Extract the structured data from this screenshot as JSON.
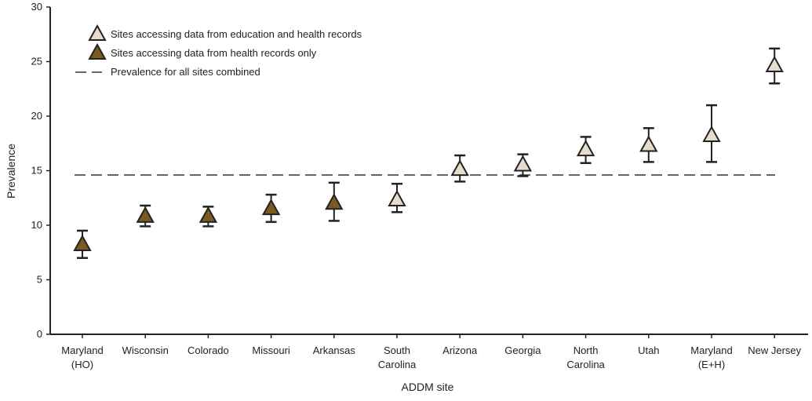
{
  "chart_data": {
    "type": "scatter",
    "title": "",
    "xlabel": "ADDM site",
    "ylabel": "Prevalence",
    "ylim": [
      0,
      30
    ],
    "yticks": [
      0,
      5,
      10,
      15,
      20,
      25,
      30
    ],
    "grid": false,
    "legend_placement": "top-left",
    "categories": [
      [
        "Maryland",
        "(HO)"
      ],
      [
        "Wisconsin"
      ],
      [
        "Colorado"
      ],
      [
        "Missouri"
      ],
      [
        "Arkansas"
      ],
      [
        "South",
        "Carolina"
      ],
      [
        "Arizona"
      ],
      [
        "Georgia"
      ],
      [
        "North",
        "Carolina"
      ],
      [
        "Utah"
      ],
      [
        "Maryland",
        "(E+H)"
      ],
      [
        "New Jersey"
      ]
    ],
    "series": [
      {
        "name": "Sites accessing data from education and health records",
        "color": "#e6dccb",
        "key": "eh"
      },
      {
        "name": "Sites accessing data from health records only",
        "color": "#7b5a22",
        "key": "ho"
      }
    ],
    "points": [
      {
        "value": 8.2,
        "lower": 7.0,
        "upper": 9.5,
        "group": "ho"
      },
      {
        "value": 10.8,
        "lower": 9.9,
        "upper": 11.8,
        "group": "ho"
      },
      {
        "value": 10.8,
        "lower": 9.9,
        "upper": 11.7,
        "group": "ho"
      },
      {
        "value": 11.5,
        "lower": 10.3,
        "upper": 12.8,
        "group": "ho"
      },
      {
        "value": 12.0,
        "lower": 10.4,
        "upper": 13.9,
        "group": "ho"
      },
      {
        "value": 12.3,
        "lower": 11.2,
        "upper": 13.8,
        "group": "eh"
      },
      {
        "value": 15.1,
        "lower": 14.0,
        "upper": 16.4,
        "group": "eh"
      },
      {
        "value": 15.5,
        "lower": 14.5,
        "upper": 16.5,
        "group": "eh"
      },
      {
        "value": 16.9,
        "lower": 15.7,
        "upper": 18.1,
        "group": "eh"
      },
      {
        "value": 17.3,
        "lower": 15.8,
        "upper": 18.9,
        "group": "eh"
      },
      {
        "value": 18.2,
        "lower": 15.8,
        "upper": 21.0,
        "group": "eh"
      },
      {
        "value": 24.6,
        "lower": 23.0,
        "upper": 26.2,
        "group": "eh"
      }
    ],
    "reference_line": {
      "name": "Prevalence for all sites combined",
      "value": 14.6,
      "style": "dashed"
    }
  }
}
